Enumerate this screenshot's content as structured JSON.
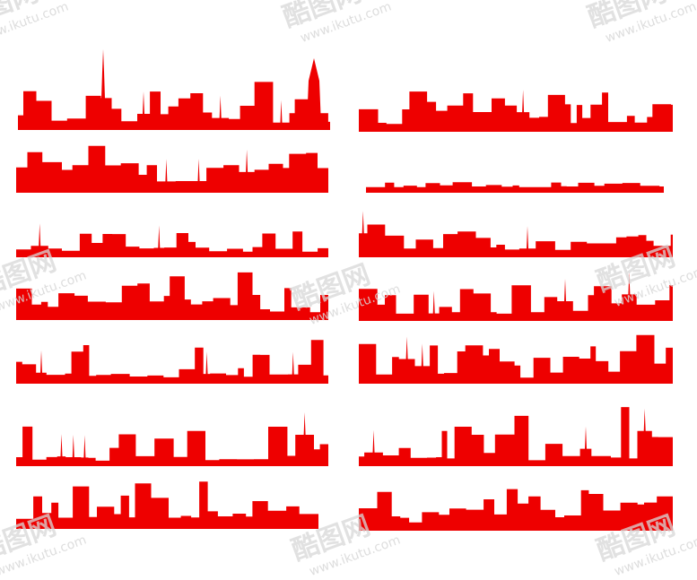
{
  "watermark": {
    "logo": "酷图网",
    "url": "www.ikutu.com"
  }
}
